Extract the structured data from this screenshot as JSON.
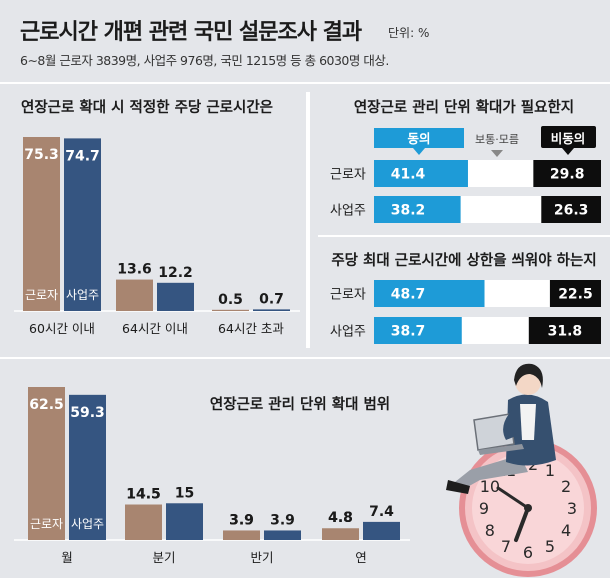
{
  "header": {
    "title": "근로시간 개편 관련 국민 설문조사 결과",
    "unit": "단위: %",
    "subtitle": "6∼8월 근로자 3839명, 사업주 976명, 국민 1215명 등 총 6030명 대상."
  },
  "colors": {
    "worker": "#a88570",
    "employer": "#355581",
    "agree": "#1e9bd7",
    "disagree": "#0d0d0d",
    "neutral": "#ffffff",
    "background": "#e4e6ea"
  },
  "chart_data": [
    {
      "type": "bar",
      "title": "연장근로 확대 시 적정한 주당 근로시간은",
      "categories": [
        "60시간 이내",
        "64시간 이내",
        "64시간 초과"
      ],
      "series": [
        {
          "name": "근로자",
          "values": [
            75.3,
            13.6,
            0.5
          ]
        },
        {
          "name": "사업주",
          "values": [
            74.7,
            12.2,
            0.7
          ]
        }
      ],
      "ylim": [
        0,
        75.3
      ],
      "legend": "inside first bars"
    },
    {
      "type": "bar",
      "orientation": "horizontal-stacked",
      "title": "연장근로 관리 단위 확대가 필요한지",
      "legend_labels": [
        "동의",
        "보통·모름",
        "비동의"
      ],
      "categories": [
        "근로자",
        "사업주"
      ],
      "series": [
        {
          "name": "동의",
          "values": [
            41.4,
            38.2
          ]
        },
        {
          "name": "보통·모름",
          "values": [
            28.8,
            35.5
          ]
        },
        {
          "name": "비동의",
          "values": [
            29.8,
            26.3
          ]
        }
      ]
    },
    {
      "type": "bar",
      "orientation": "horizontal-stacked",
      "title": "주당 최대 근로시간에 상한을 씌워야 하는지",
      "categories": [
        "근로자",
        "사업주"
      ],
      "series": [
        {
          "name": "동의",
          "values": [
            48.7,
            38.7
          ]
        },
        {
          "name": "보통·모름",
          "values": [
            28.8,
            29.5
          ]
        },
        {
          "name": "비동의",
          "values": [
            22.5,
            31.8
          ]
        }
      ]
    },
    {
      "type": "bar",
      "title": "연장근로 관리 단위 확대 범위",
      "categories": [
        "월",
        "분기",
        "반기",
        "연"
      ],
      "series": [
        {
          "name": "근로자",
          "values": [
            62.5,
            14.5,
            3.9,
            4.8
          ]
        },
        {
          "name": "사업주",
          "values": [
            59.3,
            15,
            3.9,
            7.4
          ]
        }
      ],
      "ylim": [
        0,
        62.5
      ],
      "legend": "inside first bars"
    }
  ]
}
